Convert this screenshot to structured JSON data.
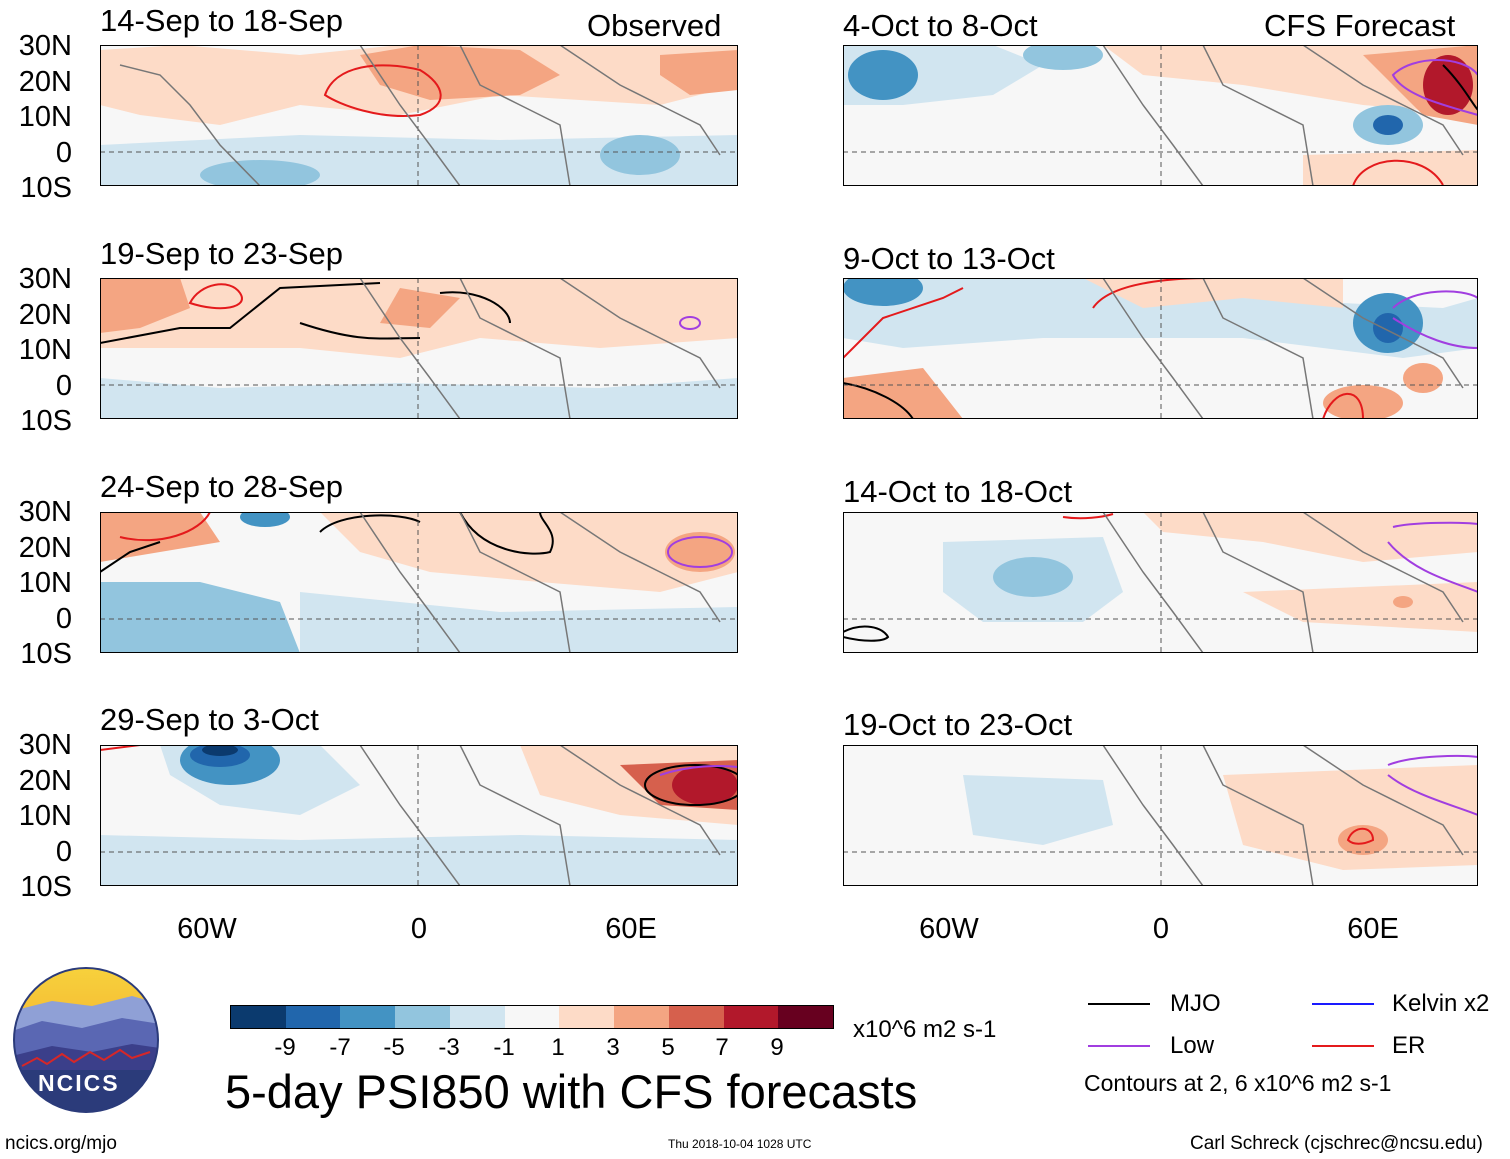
{
  "header": {
    "left_label": "Observed",
    "right_label": "CFS Forecast"
  },
  "panels_left": [
    {
      "title": "14-Sep to 18-Sep"
    },
    {
      "title": "19-Sep to 23-Sep"
    },
    {
      "title": "24-Sep to 28-Sep"
    },
    {
      "title": "29-Sep to 3-Oct"
    }
  ],
  "panels_right": [
    {
      "title": "4-Oct to 8-Oct"
    },
    {
      "title": "9-Oct to 13-Oct"
    },
    {
      "title": "14-Oct to 18-Oct"
    },
    {
      "title": "19-Oct to 23-Oct"
    }
  ],
  "axes": {
    "lat_labels": [
      "30N",
      "20N",
      "10N",
      "0",
      "10S"
    ],
    "lon_labels": [
      "60W",
      "0",
      "60E"
    ]
  },
  "colorbar": {
    "ticks": [
      "-9",
      "-7",
      "-5",
      "-3",
      "-1",
      "1",
      "3",
      "5",
      "7",
      "9"
    ],
    "units": "x10^6 m2 s-1",
    "colors": [
      "#0b3a6e",
      "#2166ac",
      "#4393c3",
      "#92c5de",
      "#d1e5f0",
      "#f7f7f7",
      "#fddbc7",
      "#f4a582",
      "#d6604d",
      "#b2182b",
      "#67001f"
    ]
  },
  "legend": {
    "items": [
      {
        "label": "MJO",
        "color": "#000000"
      },
      {
        "label": "Kelvin x2",
        "color": "#1a1aff"
      },
      {
        "label": "Low",
        "color": "#a13ee0"
      },
      {
        "label": "ER",
        "color": "#e41a1c"
      }
    ],
    "note": "Contours at 2, 6 x10^6 m2 s-1"
  },
  "footer": {
    "main_title": "5-day PSI850 with CFS forecasts",
    "logo_text": "NCICS",
    "url": "ncics.org/mjo",
    "timestamp": "Thu 2018-10-04 1028 UTC",
    "author": "Carl Schreck (cjschrec@ncsu.edu)"
  }
}
